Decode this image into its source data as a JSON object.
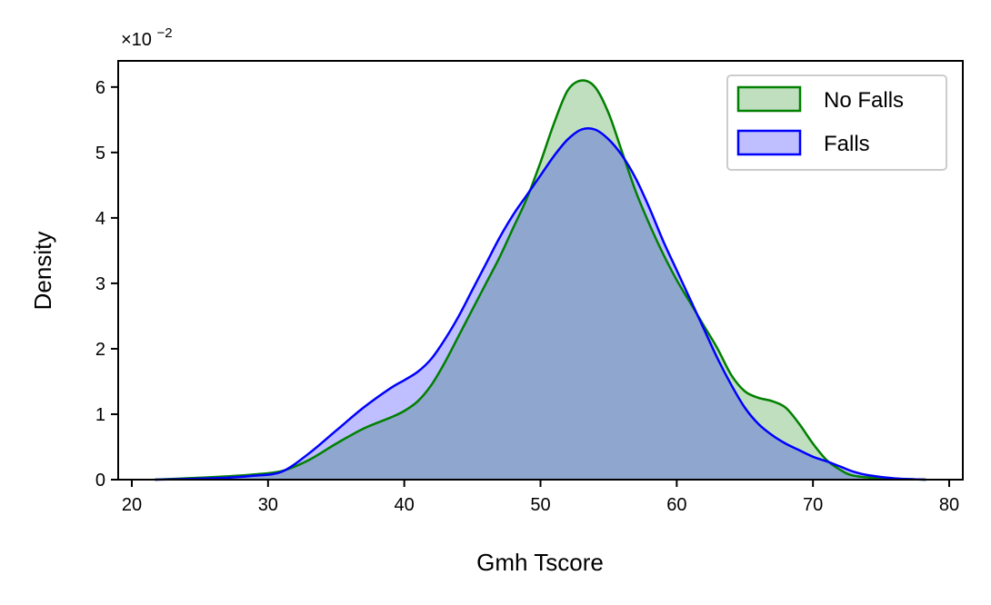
{
  "chart_data": {
    "type": "area",
    "xlabel": "Gmh Tscore",
    "ylabel": "Density",
    "xlim": [
      19,
      81
    ],
    "ylim": [
      0,
      6.4
    ],
    "xticks": [
      "20",
      "30",
      "40",
      "50",
      "60",
      "70",
      "80"
    ],
    "yticks": [
      "0",
      "1",
      "2",
      "3",
      "4",
      "5",
      "6"
    ],
    "y_scale_label": "×10",
    "y_scale_exponent": "−2",
    "legend_position": "top-right",
    "series": [
      {
        "name": "No Falls",
        "color": "#008000",
        "fill": "#008000",
        "points": [
          [
            21.7,
            0
          ],
          [
            24,
            0.02
          ],
          [
            27,
            0.05
          ],
          [
            29,
            0.08
          ],
          [
            31,
            0.13
          ],
          [
            33,
            0.3
          ],
          [
            35,
            0.55
          ],
          [
            37,
            0.78
          ],
          [
            39,
            0.95
          ],
          [
            40,
            1.05
          ],
          [
            41,
            1.2
          ],
          [
            42,
            1.45
          ],
          [
            43,
            1.8
          ],
          [
            44,
            2.2
          ],
          [
            45,
            2.6
          ],
          [
            46,
            3.0
          ],
          [
            47,
            3.4
          ],
          [
            48,
            3.85
          ],
          [
            49,
            4.3
          ],
          [
            50,
            4.85
          ],
          [
            51,
            5.45
          ],
          [
            52,
            5.95
          ],
          [
            53,
            6.1
          ],
          [
            54,
            6.0
          ],
          [
            55,
            5.6
          ],
          [
            56,
            5.0
          ],
          [
            57,
            4.4
          ],
          [
            58,
            3.9
          ],
          [
            59,
            3.45
          ],
          [
            60,
            3.05
          ],
          [
            61,
            2.7
          ],
          [
            62,
            2.35
          ],
          [
            63,
            2.0
          ],
          [
            64,
            1.6
          ],
          [
            65,
            1.35
          ],
          [
            66,
            1.25
          ],
          [
            67,
            1.2
          ],
          [
            68,
            1.1
          ],
          [
            69,
            0.85
          ],
          [
            70,
            0.55
          ],
          [
            71,
            0.3
          ],
          [
            72,
            0.15
          ],
          [
            73,
            0.06
          ],
          [
            75,
            0.02
          ],
          [
            78.3,
            0
          ]
        ]
      },
      {
        "name": "Falls",
        "color": "#0000ff",
        "fill": "#0000ff",
        "points": [
          [
            21.7,
            0
          ],
          [
            24,
            0.01
          ],
          [
            27,
            0.03
          ],
          [
            29,
            0.06
          ],
          [
            31,
            0.12
          ],
          [
            33,
            0.4
          ],
          [
            35,
            0.75
          ],
          [
            37,
            1.1
          ],
          [
            39,
            1.4
          ],
          [
            40,
            1.52
          ],
          [
            41,
            1.65
          ],
          [
            42,
            1.85
          ],
          [
            43,
            2.15
          ],
          [
            44,
            2.5
          ],
          [
            45,
            2.9
          ],
          [
            46,
            3.3
          ],
          [
            47,
            3.7
          ],
          [
            48,
            4.05
          ],
          [
            49,
            4.35
          ],
          [
            50,
            4.65
          ],
          [
            51,
            4.95
          ],
          [
            52,
            5.2
          ],
          [
            53,
            5.35
          ],
          [
            54,
            5.35
          ],
          [
            55,
            5.2
          ],
          [
            56,
            4.95
          ],
          [
            57,
            4.6
          ],
          [
            58,
            4.15
          ],
          [
            59,
            3.65
          ],
          [
            60,
            3.2
          ],
          [
            61,
            2.75
          ],
          [
            62,
            2.3
          ],
          [
            63,
            1.85
          ],
          [
            64,
            1.45
          ],
          [
            65,
            1.1
          ],
          [
            66,
            0.85
          ],
          [
            67,
            0.68
          ],
          [
            68,
            0.55
          ],
          [
            69,
            0.45
          ],
          [
            70,
            0.35
          ],
          [
            71,
            0.28
          ],
          [
            72,
            0.2
          ],
          [
            73,
            0.12
          ],
          [
            74,
            0.07
          ],
          [
            76,
            0.02
          ],
          [
            78.3,
            0
          ]
        ]
      }
    ]
  }
}
